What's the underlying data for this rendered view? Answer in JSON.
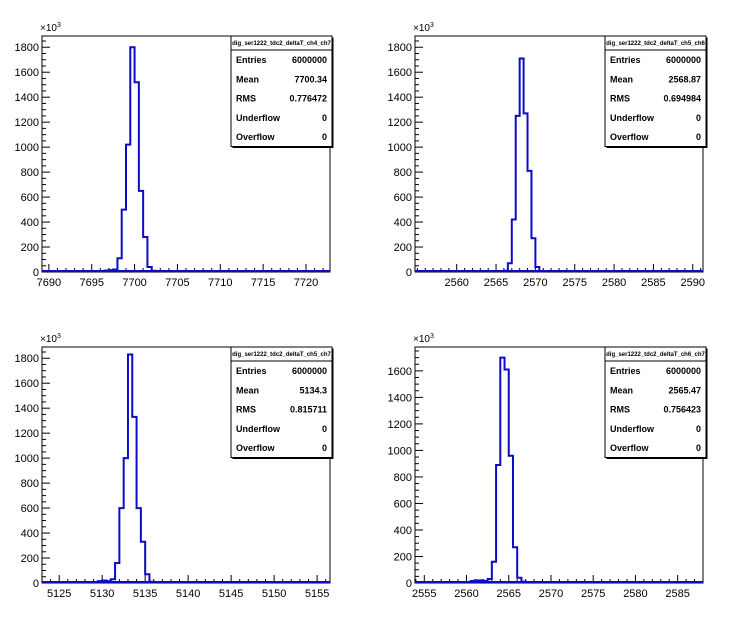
{
  "chart_data": [
    {
      "type": "histogram",
      "title": "dig_ser1222_tdc2_deltaT_ch4_ch7",
      "exponent": "3",
      "xlim": [
        7689.2,
        7722.8
      ],
      "ylim": [
        0,
        1890
      ],
      "xticks": [
        7690,
        7695,
        7700,
        7705,
        7710,
        7715,
        7720
      ],
      "yticks": [
        0,
        200,
        400,
        600,
        800,
        1000,
        1200,
        1400,
        1600,
        1800
      ],
      "bin_width": 0.5,
      "bin_start": 7696.0,
      "values": [
        8,
        12,
        15,
        20,
        110,
        500,
        1020,
        1800,
        1520,
        650,
        280,
        40,
        10
      ],
      "stats": [
        {
          "label": "Entries",
          "value": "6000000"
        },
        {
          "label": "Mean",
          "value": "7700.34"
        },
        {
          "label": "RMS",
          "value": "0.776472"
        },
        {
          "label": "Underflow",
          "value": "0"
        },
        {
          "label": "Overflow",
          "value": "0"
        }
      ]
    },
    {
      "type": "histogram",
      "title": "dig_ser1222_tdc2_deltaT_ch5_ch6",
      "exponent": "3",
      "xlim": [
        2554.7,
        2591.3
      ],
      "ylim": [
        0,
        1890
      ],
      "xticks": [
        2560,
        2565,
        2570,
        2575,
        2580,
        2585,
        2590
      ],
      "yticks": [
        0,
        200,
        400,
        600,
        800,
        1000,
        1200,
        1400,
        1600,
        1800
      ],
      "bin_width": 0.5,
      "bin_start": 2566.0,
      "values": [
        10,
        70,
        420,
        1250,
        1710,
        1270,
        810,
        270,
        40,
        5
      ],
      "stats": [
        {
          "label": "Entries",
          "value": "6000000"
        },
        {
          "label": "Mean",
          "value": "2568.87"
        },
        {
          "label": "RMS",
          "value": "0.694984"
        },
        {
          "label": "Underflow",
          "value": "0"
        },
        {
          "label": "Overflow",
          "value": "0"
        }
      ]
    },
    {
      "type": "histogram",
      "title": "dig_ser1222_tdc2_deltaT_ch5_ch7",
      "exponent": "3",
      "xlim": [
        5123.0,
        5156.5
      ],
      "ylim": [
        0,
        1890
      ],
      "xticks": [
        5125,
        5130,
        5135,
        5140,
        5145,
        5150,
        5155
      ],
      "yticks": [
        0,
        200,
        400,
        600,
        800,
        1000,
        1200,
        1400,
        1600,
        1800
      ],
      "bin_width": 0.5,
      "bin_start": 5129.5,
      "values": [
        15,
        20,
        15,
        30,
        160,
        600,
        1000,
        1830,
        1330,
        600,
        330,
        70,
        10
      ],
      "stats": [
        {
          "label": "Entries",
          "value": "6000000"
        },
        {
          "label": "Mean",
          "value": "5134.3"
        },
        {
          "label": "RMS",
          "value": "0.815711"
        },
        {
          "label": "Underflow",
          "value": "0"
        },
        {
          "label": "Overflow",
          "value": "0"
        }
      ]
    },
    {
      "type": "histogram",
      "title": "dig_ser1222_tdc2_deltaT_ch6_ch7",
      "exponent": "3",
      "xlim": [
        2553.9,
        2588.0
      ],
      "ylim": [
        0,
        1780
      ],
      "xticks": [
        2555,
        2560,
        2565,
        2570,
        2575,
        2580,
        2585
      ],
      "yticks": [
        0,
        200,
        400,
        600,
        800,
        1000,
        1200,
        1400,
        1600
      ],
      "bin_width": 0.5,
      "bin_start": 2560.5,
      "values": [
        15,
        20,
        20,
        15,
        30,
        160,
        890,
        1700,
        1610,
        960,
        270,
        40,
        10
      ],
      "stats": [
        {
          "label": "Entries",
          "value": "6000000"
        },
        {
          "label": "Mean",
          "value": "2565.47"
        },
        {
          "label": "RMS",
          "value": "0.756423"
        },
        {
          "label": "Underflow",
          "value": "0"
        },
        {
          "label": "Overflow",
          "value": "0"
        }
      ]
    }
  ],
  "colors": {
    "histogram_line": "#0b0bc8",
    "axes": "#000000",
    "background": "#ffffff"
  }
}
